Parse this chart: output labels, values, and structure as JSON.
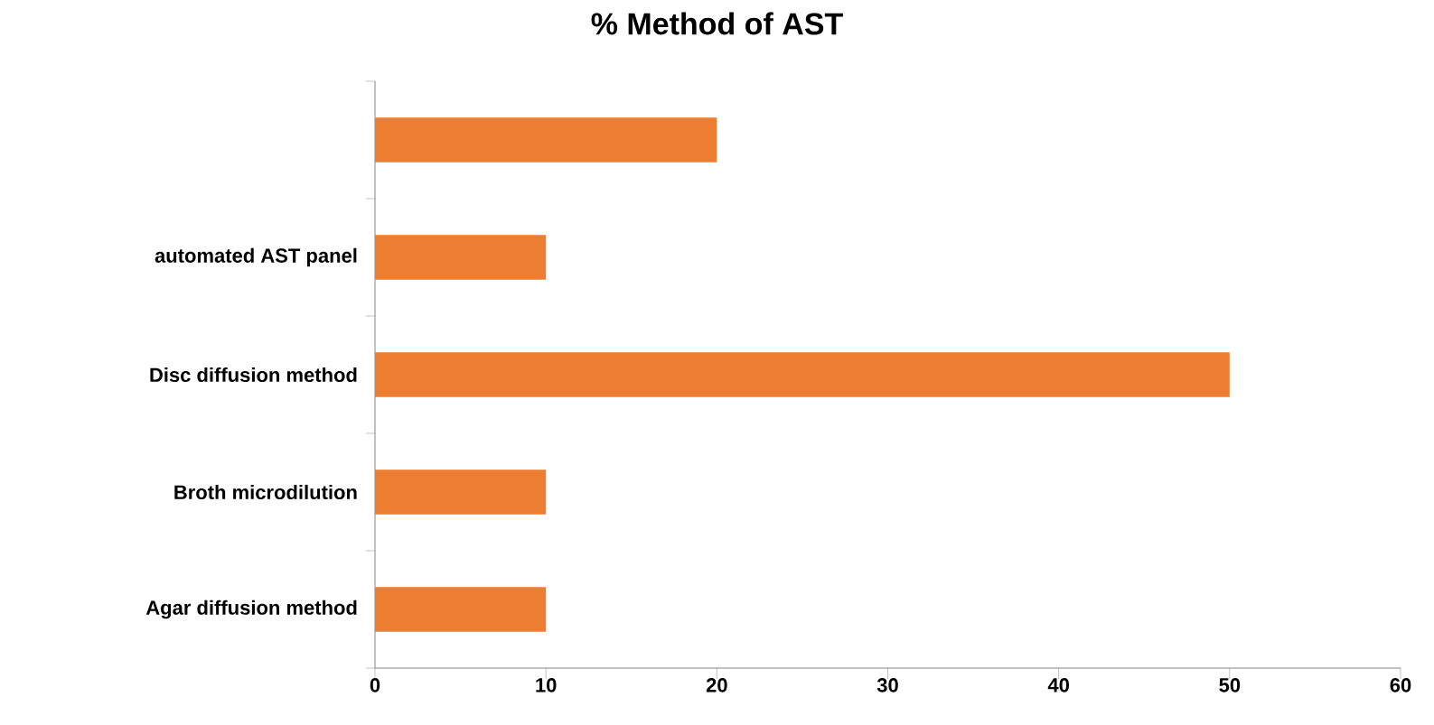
{
  "chart_data": {
    "type": "bar",
    "orientation": "horizontal",
    "title": "% Method of AST",
    "categories": [
      null,
      "automated AST panel",
      "Disc diffusion method",
      "Broth microdilution",
      "Agar diffusion method"
    ],
    "values": [
      20,
      10,
      50,
      10,
      10
    ],
    "color": "#ed7d31",
    "xlim": [
      0,
      60
    ],
    "xticks": [
      0,
      10,
      20,
      30,
      40,
      50,
      60
    ],
    "grid": false
  }
}
